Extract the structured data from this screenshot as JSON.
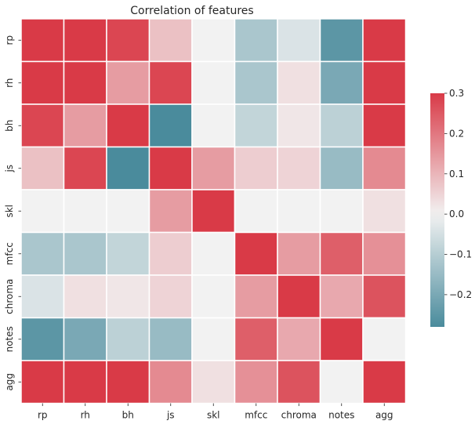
{
  "chart_data": {
    "type": "heatmap",
    "title": "Correlation of features",
    "xlabel": "",
    "ylabel": "",
    "row_labels": [
      "rp",
      "rh",
      "bh",
      "js",
      "skl",
      "mfcc",
      "chroma",
      "notes",
      "agg"
    ],
    "col_labels": [
      "rp",
      "rh",
      "bh",
      "js",
      "skl",
      "mfcc",
      "chroma",
      "notes",
      "agg"
    ],
    "values": [
      [
        0.3,
        0.3,
        0.28,
        0.08,
        0.0,
        -0.12,
        -0.04,
        -0.25,
        0.3
      ],
      [
        0.3,
        0.3,
        0.14,
        0.28,
        0.0,
        -0.12,
        0.03,
        -0.2,
        0.3
      ],
      [
        0.28,
        0.14,
        0.3,
        -0.28,
        0.0,
        -0.08,
        0.02,
        -0.09,
        0.3
      ],
      [
        0.08,
        0.28,
        -0.28,
        0.3,
        0.14,
        0.06,
        0.05,
        -0.15,
        0.17
      ],
      [
        0.0,
        0.0,
        0.0,
        0.14,
        0.3,
        0.0,
        0.0,
        0.0,
        0.03
      ],
      [
        -0.12,
        -0.12,
        -0.08,
        0.06,
        0.0,
        0.3,
        0.14,
        0.24,
        0.16
      ],
      [
        -0.04,
        0.03,
        0.02,
        0.05,
        0.0,
        0.14,
        0.3,
        0.12,
        0.26
      ],
      [
        -0.25,
        -0.2,
        -0.09,
        -0.15,
        0.0,
        0.24,
        0.12,
        0.3,
        0.0
      ],
      [
        0.3,
        0.3,
        0.3,
        0.17,
        0.03,
        0.16,
        0.26,
        0.0,
        0.3
      ]
    ],
    "vmin": -0.28,
    "vmax": 0.3,
    "colorbar": {
      "ticks": [
        0.3,
        0.2,
        0.1,
        0.0,
        -0.1,
        -0.2
      ],
      "tick_labels": [
        "0.3",
        "0.2",
        "0.1",
        "0.0",
        "−0.1",
        "−0.2"
      ]
    },
    "colors": {
      "negative": "#4a8b9c",
      "center": "#f2f2f2",
      "positive": "#d93a47",
      "cell_border": "#ffffff"
    }
  }
}
